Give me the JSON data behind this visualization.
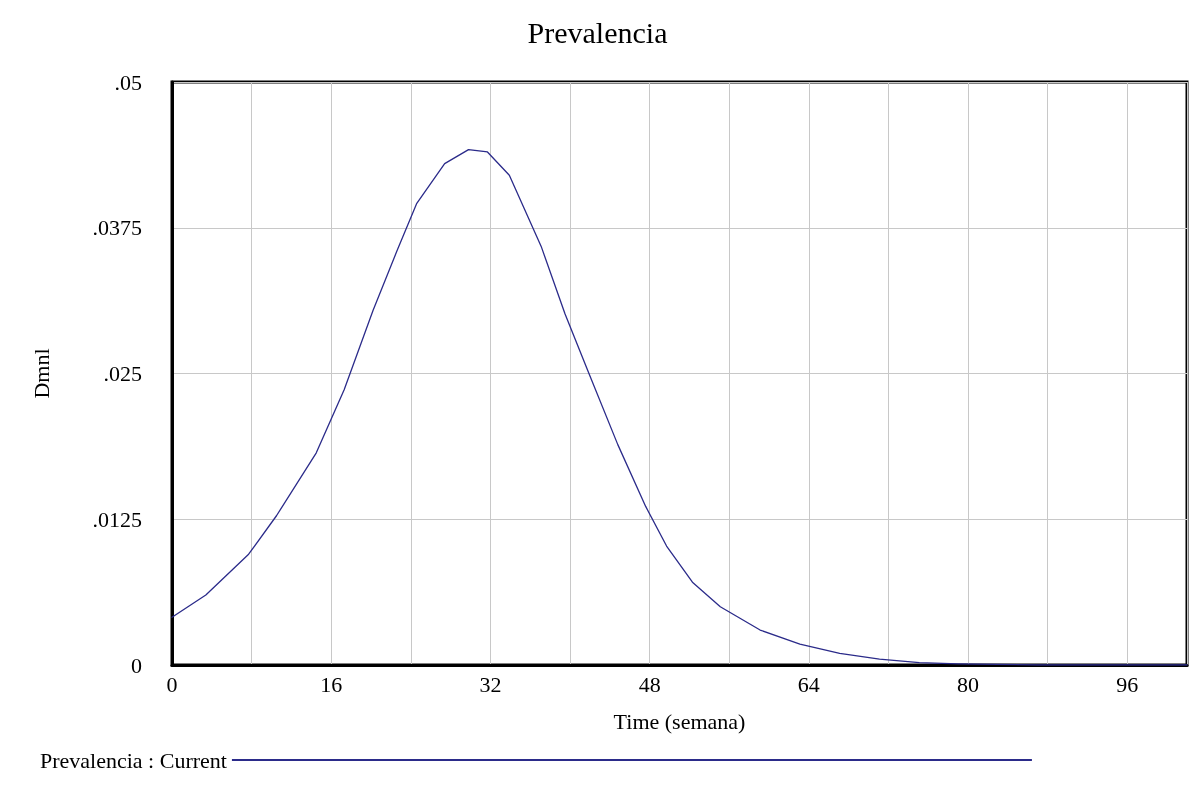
{
  "chart_data": {
    "type": "line",
    "title": "Prevalencia",
    "xlabel": "Time (semana)",
    "ylabel": "Dmnl",
    "x": [
      0,
      3.4,
      7.7,
      10.5,
      14.5,
      17.3,
      20.2,
      22.6,
      24.6,
      27.4,
      29.8,
      31.7,
      33.9,
      37.1,
      39.5,
      41.9,
      44.8,
      47.6,
      49.7,
      52.3,
      55.1,
      59.1,
      63.1,
      67.1,
      71.1,
      75.1,
      79,
      87,
      102
    ],
    "series": [
      {
        "name": "Prevalencia : Current",
        "color": "#2b2b8a",
        "values": [
          0.0041,
          0.006,
          0.0095,
          0.0128,
          0.0182,
          0.0236,
          0.0304,
          0.0355,
          0.0396,
          0.043,
          0.0442,
          0.044,
          0.042,
          0.0359,
          0.0301,
          0.025,
          0.0189,
          0.0136,
          0.0102,
          0.0071,
          0.005,
          0.003,
          0.0018,
          0.001,
          0.0005,
          0.0002,
          0.0001,
          0,
          0
        ]
      }
    ],
    "xlim": [
      0,
      102
    ],
    "xticks": [
      0,
      {
        "value": 8,
        "label": null
      },
      16,
      {
        "value": 24,
        "label": null
      },
      32,
      {
        "value": 40,
        "label": null
      },
      48,
      {
        "value": 56,
        "label": null
      },
      64,
      {
        "value": 72,
        "label": null
      },
      80,
      {
        "value": 88,
        "label": null
      },
      96
    ],
    "ylim": [
      0,
      0.05
    ],
    "yticks": [
      0,
      {
        "value": 0.0125,
        "label": ".0125"
      },
      {
        "value": 0.025,
        "label": ".025"
      },
      {
        "value": 0.0375,
        "label": ".0375"
      },
      {
        "value": 0.05,
        "label": ".05"
      }
    ],
    "grid": true,
    "legend": "bottom",
    "marker": "none",
    "line_style": "solid"
  }
}
